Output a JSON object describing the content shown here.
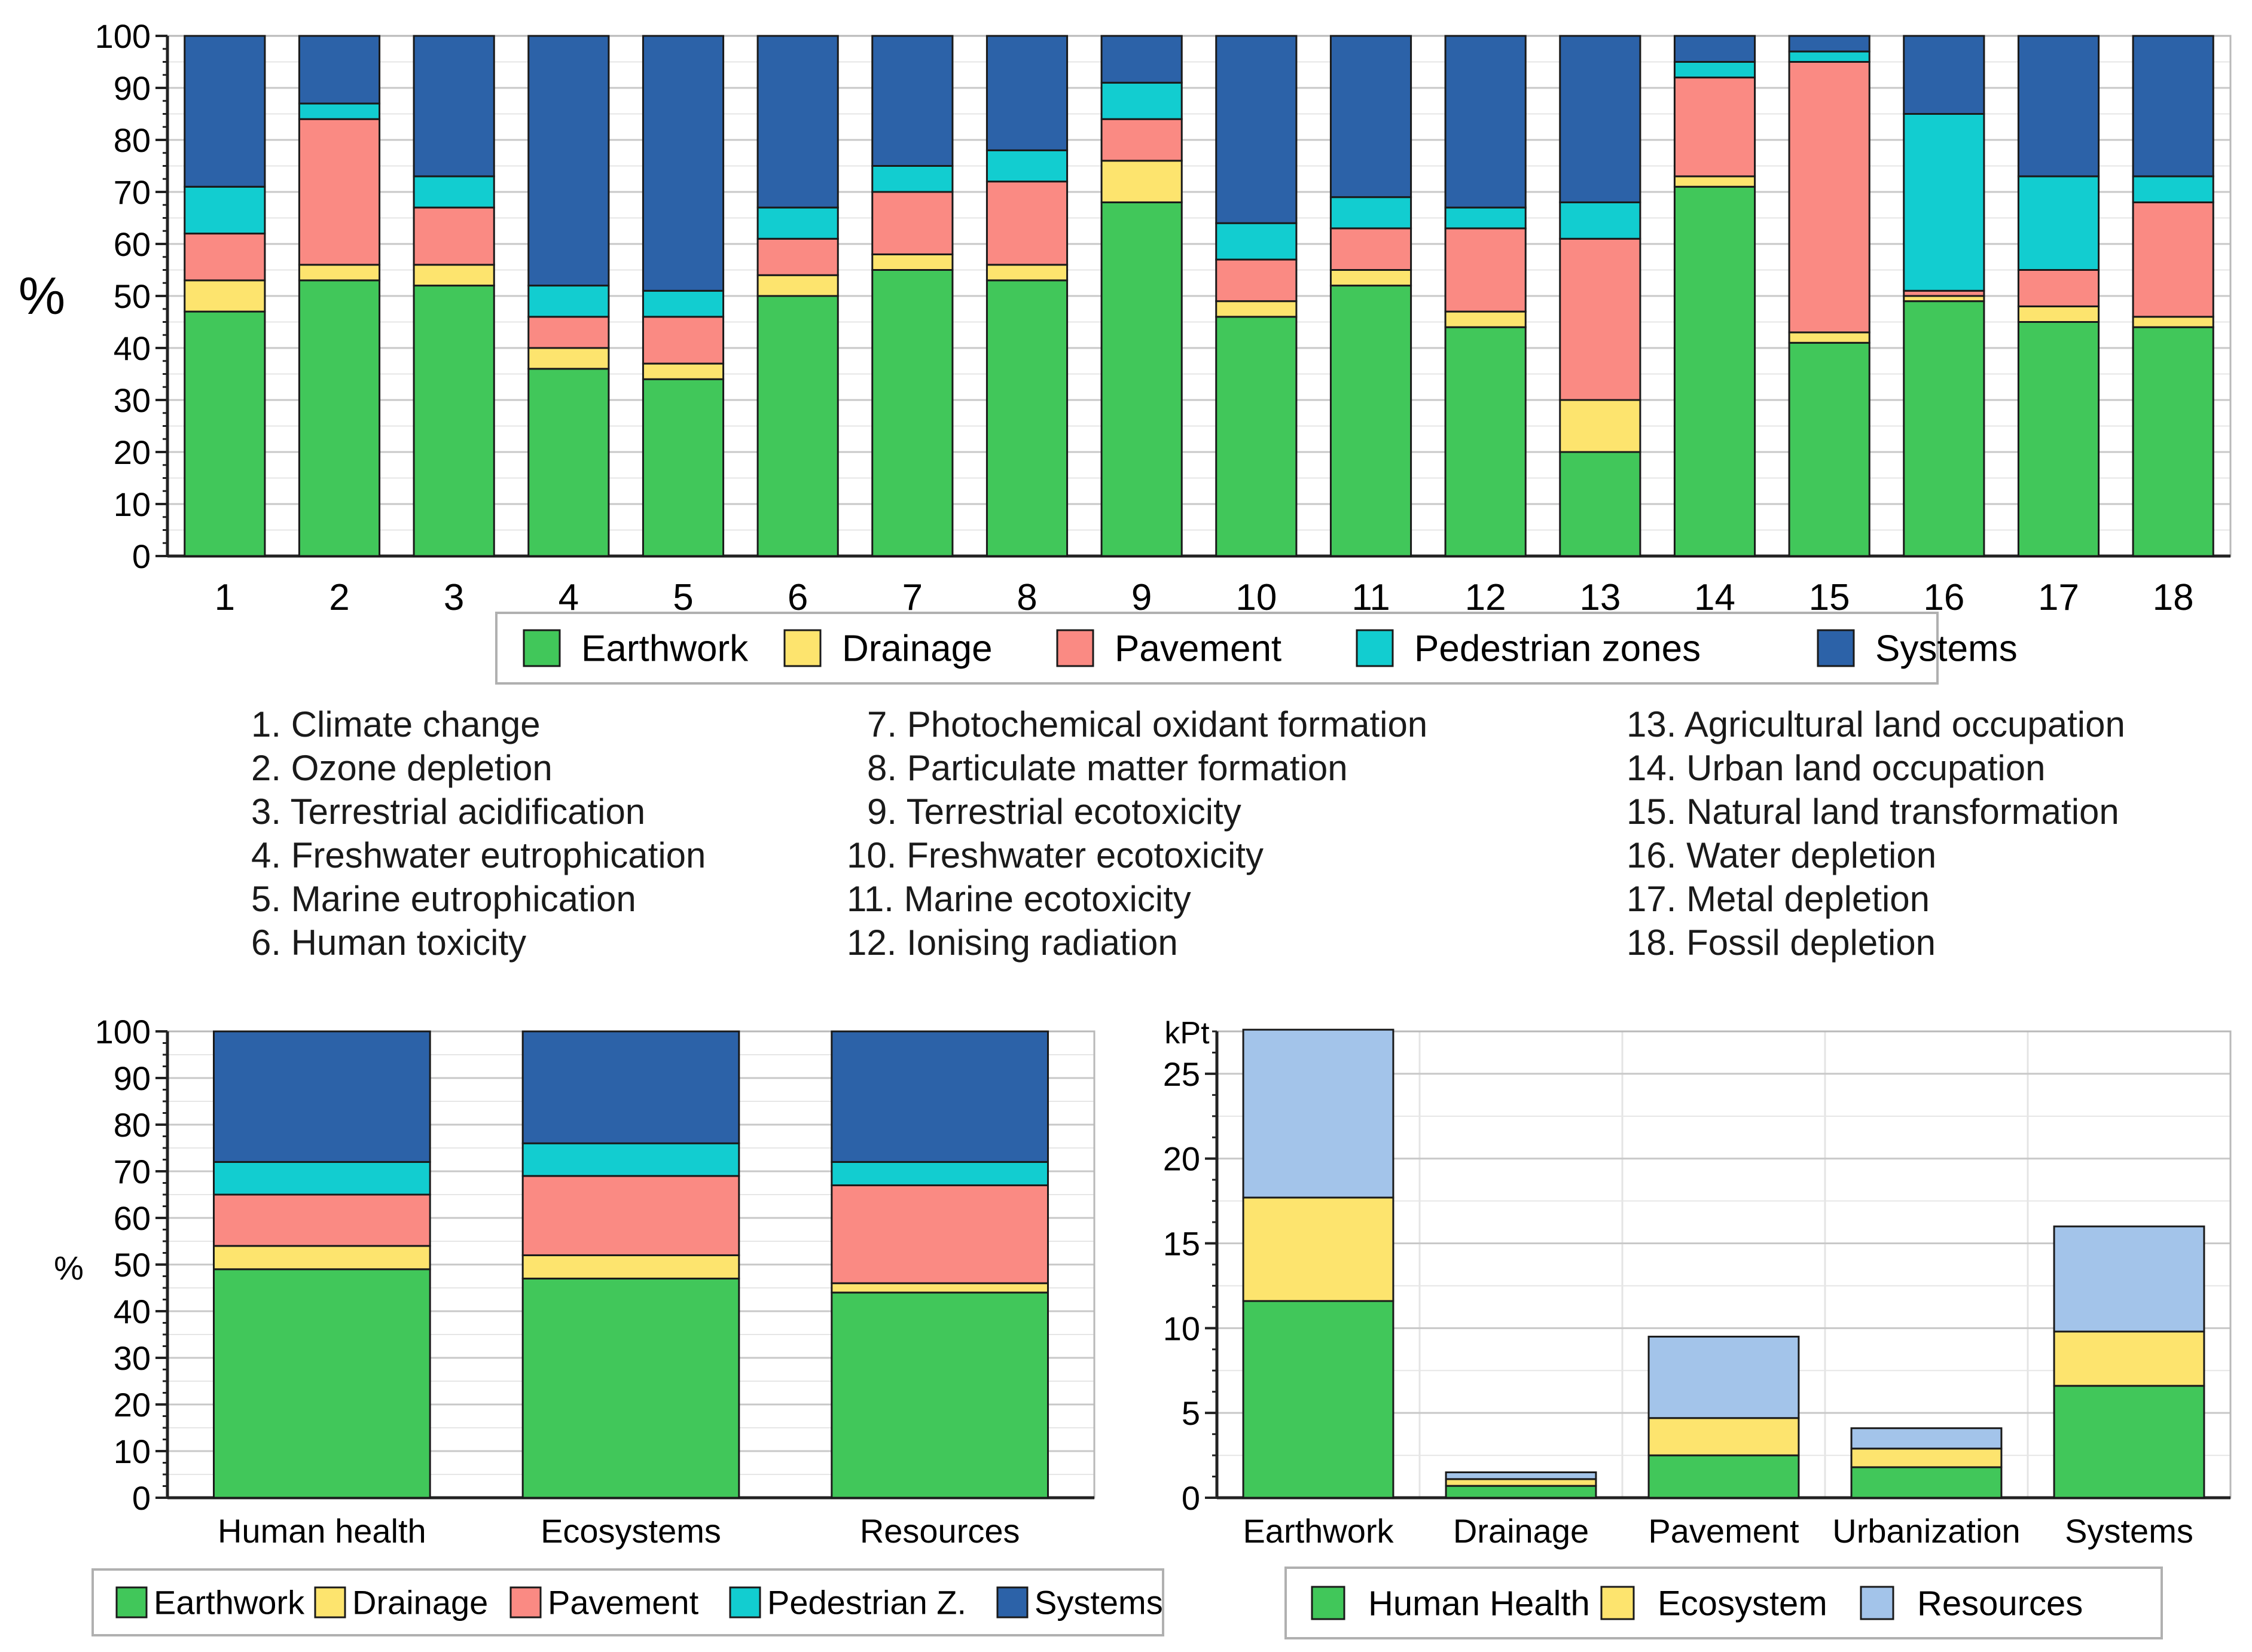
{
  "colors": {
    "Earthwork": "#41c75a",
    "Drainage": "#fde46e",
    "Pavement": "#fa8a83",
    "Pedestrian zones": "#12cdd0",
    "Systems": "#2c62a8",
    "Human Health": "#41c75a",
    "Ecosystem": "#fde46e",
    "Resources": "#a3c4ea"
  },
  "impact_categories": [
    "1. Climate change",
    "2. Ozone depletion",
    "3. Terrestrial acidification",
    "4. Freshwater eutrophication",
    "5. Marine eutrophication",
    "6. Human toxicity",
    "7. Photochemical oxidant formation",
    "8. Particulate matter formation",
    "9. Terrestrial ecotoxicity",
    "10. Freshwater ecotoxicity",
    "11. Marine ecotoxicity",
    "12. Ionising radiation",
    "13. Agricultural land occupation",
    "14. Urban land occupation",
    "15. Natural land transformation",
    "16. Water depletion",
    "17. Metal depletion",
    "18. Fossil depletion"
  ],
  "chart_data": [
    {
      "id": "midpoint",
      "type": "bar",
      "stacked": true,
      "title": "",
      "xlabel": "",
      "ylabel": "%",
      "ylim": [
        0,
        100
      ],
      "yticks": [
        0,
        10,
        20,
        30,
        40,
        50,
        60,
        70,
        80,
        90,
        100
      ],
      "grid": true,
      "categories": [
        "1",
        "2",
        "3",
        "4",
        "5",
        "6",
        "7",
        "8",
        "9",
        "10",
        "11",
        "12",
        "13",
        "14",
        "15",
        "16",
        "17",
        "18"
      ],
      "series": [
        {
          "name": "Earthwork",
          "values": [
            47,
            53,
            52,
            36,
            34,
            50,
            55,
            53,
            68,
            46,
            52,
            44,
            20,
            71,
            41,
            49,
            45,
            44
          ]
        },
        {
          "name": "Drainage",
          "values": [
            6,
            3,
            4,
            4,
            3,
            4,
            3,
            3,
            8,
            3,
            3,
            3,
            10,
            2,
            2,
            1,
            3,
            2
          ]
        },
        {
          "name": "Pavement",
          "values": [
            9,
            28,
            11,
            6,
            9,
            7,
            12,
            16,
            8,
            8,
            8,
            16,
            31,
            19,
            52,
            1,
            7,
            22
          ]
        },
        {
          "name": "Pedestrian zones",
          "values": [
            9,
            3,
            6,
            6,
            5,
            6,
            5,
            6,
            7,
            7,
            6,
            4,
            7,
            3,
            2,
            34,
            18,
            5
          ]
        },
        {
          "name": "Systems",
          "values": [
            29,
            13,
            27,
            48,
            49,
            33,
            25,
            22,
            9,
            36,
            31,
            33,
            32,
            5,
            3,
            15,
            27,
            27
          ]
        }
      ],
      "legend": {
        "position": "bottom",
        "entries": [
          "Earthwork",
          "Drainage",
          "Pavement",
          "Pedestrian zones",
          "Systems"
        ]
      }
    },
    {
      "id": "endpoint-percent",
      "type": "bar",
      "stacked": true,
      "title": "",
      "xlabel": "",
      "ylabel": "%",
      "ylim": [
        0,
        100
      ],
      "yticks": [
        0,
        10,
        20,
        30,
        40,
        50,
        60,
        70,
        80,
        90,
        100
      ],
      "grid": true,
      "categories": [
        "Human health",
        "Ecosystems",
        "Resources"
      ],
      "series": [
        {
          "name": "Earthwork",
          "values": [
            49,
            47,
            44
          ]
        },
        {
          "name": "Drainage",
          "values": [
            5,
            5,
            2
          ]
        },
        {
          "name": "Pavement",
          "values": [
            11,
            17,
            21
          ]
        },
        {
          "name": "Pedestrian Z.",
          "values": [
            7,
            7,
            5
          ]
        },
        {
          "name": "Systems",
          "values": [
            28,
            24,
            28
          ]
        }
      ],
      "legend": {
        "position": "bottom",
        "entries": [
          "Earthwork",
          "Drainage",
          "Pavement",
          "Pedestrian Z.",
          "Systems"
        ]
      }
    },
    {
      "id": "endpoint-kpt",
      "type": "bar",
      "stacked": true,
      "title": "",
      "xlabel": "",
      "ylabel": "kPt",
      "ylim": [
        0,
        27.5
      ],
      "yticks": [
        0,
        5,
        10,
        15,
        20,
        25
      ],
      "grid": true,
      "categories": [
        "Earthwork",
        "Drainage",
        "Pavement",
        "Urbanization",
        "Systems"
      ],
      "series": [
        {
          "name": "Human Health",
          "values": [
            11.6,
            0.7,
            2.5,
            1.8,
            6.6
          ]
        },
        {
          "name": "Ecosystem",
          "values": [
            6.1,
            0.4,
            2.2,
            1.1,
            3.2
          ]
        },
        {
          "name": "Resources",
          "values": [
            9.9,
            0.4,
            4.8,
            1.2,
            6.2
          ]
        }
      ],
      "legend": {
        "position": "bottom",
        "entries": [
          "Human Health",
          "Ecosystem",
          "Resources"
        ]
      }
    }
  ]
}
